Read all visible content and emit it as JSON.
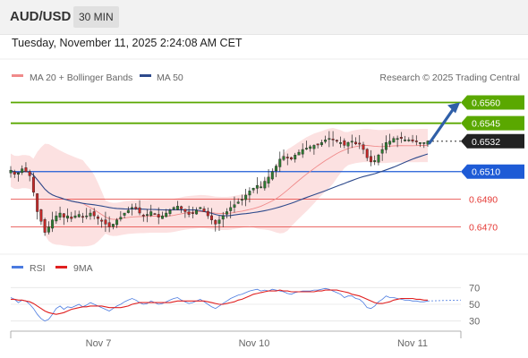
{
  "header": {
    "pair": "AUD/USD",
    "timeframe": "30 MIN"
  },
  "datetime": "Tuesday, November 11, 2025 2:24:08 AM CET",
  "legend": {
    "bollinger_label": "MA 20 + Bollinger Bands",
    "ma50_label": "MA 50",
    "credit": "Research © 2025 Trading Central"
  },
  "rsi_legend": {
    "rsi_label": "RSI",
    "ma9_label": "9MA"
  },
  "colors": {
    "up": "#2e7d32",
    "down": "#c62828",
    "resistance": "#5aa800",
    "support": "#1e5bd6",
    "pivot": "#e53935",
    "band": "#f9c9c9",
    "ma50": "#2e4a8c",
    "ma20": "#f08a8a",
    "arrow": "#2f5fa8",
    "rsi": "#4b7be0",
    "ma9": "#e02020"
  },
  "chart_data": [
    {
      "type": "candlestick",
      "x_ticks": [
        "Nov 7",
        "Nov 10",
        "Nov 11"
      ],
      "ylim": [
        0.6458,
        0.6572
      ],
      "levels": [
        {
          "label": "0.6560",
          "value": 0.656,
          "kind": "resistance"
        },
        {
          "label": "0.6545",
          "value": 0.6545,
          "kind": "resistance"
        },
        {
          "label": "0.6532",
          "value": 0.6532,
          "kind": "current"
        },
        {
          "label": "0.6510",
          "value": 0.651,
          "kind": "support"
        },
        {
          "label": "0.6490",
          "value": 0.649,
          "kind": "pivot"
        },
        {
          "label": "0.6470",
          "value": 0.647,
          "kind": "pivot"
        }
      ],
      "projection": {
        "from": 0.6532,
        "to": 0.656
      },
      "close": [
        0.6511,
        0.6508,
        0.6509,
        0.6512,
        0.651,
        0.6507,
        0.6495,
        0.6481,
        0.6474,
        0.6466,
        0.647,
        0.6475,
        0.6478,
        0.648,
        0.6477,
        0.6478,
        0.6476,
        0.6478,
        0.6479,
        0.6477,
        0.6478,
        0.648,
        0.6478,
        0.6476,
        0.6474,
        0.6472,
        0.647,
        0.6472,
        0.6475,
        0.6477,
        0.648,
        0.6482,
        0.6484,
        0.6483,
        0.648,
        0.6478,
        0.6479,
        0.6481,
        0.6479,
        0.6477,
        0.6478,
        0.648,
        0.6482,
        0.6484,
        0.6485,
        0.6483,
        0.6481,
        0.6479,
        0.648,
        0.6482,
        0.6484,
        0.6481,
        0.6478,
        0.6475,
        0.6472,
        0.6475,
        0.6478,
        0.6481,
        0.6484,
        0.6486,
        0.6488,
        0.649,
        0.6493,
        0.6496,
        0.6498,
        0.65,
        0.6499,
        0.6503,
        0.6506,
        0.651,
        0.6514,
        0.6519,
        0.6521,
        0.652,
        0.6519,
        0.6522,
        0.6524,
        0.6526,
        0.6527,
        0.6528,
        0.6529,
        0.653,
        0.6531,
        0.6533,
        0.6534,
        0.6533,
        0.6532,
        0.6531,
        0.6529,
        0.6531,
        0.6532,
        0.653,
        0.653,
        0.6526,
        0.652,
        0.6517,
        0.6518,
        0.6522,
        0.6526,
        0.6531,
        0.6532,
        0.6534,
        0.6534,
        0.6534,
        0.6533,
        0.6533,
        0.6532,
        0.6532,
        0.6531,
        0.6531,
        0.6532
      ]
    },
    {
      "type": "line",
      "name_rsi": "RSI",
      "name_ma": "9MA",
      "y_ticks": [
        70,
        50,
        30
      ],
      "ylim": [
        20,
        80
      ],
      "rsi": [
        58,
        56,
        52,
        55,
        54,
        50,
        45,
        38,
        33,
        30,
        32,
        38,
        45,
        48,
        44,
        47,
        46,
        48,
        50,
        47,
        49,
        52,
        50,
        48,
        46,
        44,
        42,
        45,
        48,
        50,
        53,
        55,
        57,
        55,
        52,
        50,
        51,
        54,
        52,
        50,
        51,
        53,
        55,
        57,
        58,
        55,
        53,
        51,
        52,
        54,
        56,
        53,
        50,
        47,
        45,
        48,
        51,
        54,
        57,
        59,
        61,
        62,
        64,
        66,
        67,
        68,
        66,
        67,
        66,
        68,
        67,
        66,
        65,
        63,
        62,
        64,
        65,
        66,
        66,
        66,
        67,
        67,
        68,
        69,
        68,
        66,
        64,
        62,
        58,
        60,
        60,
        57,
        56,
        52,
        46,
        45,
        48,
        53,
        56,
        60,
        58,
        58,
        57,
        56,
        55,
        55,
        54,
        54,
        53,
        53,
        54
      ],
      "ma9": [
        56,
        56,
        55,
        55,
        54,
        53,
        51,
        48,
        45,
        42,
        40,
        39,
        38,
        39,
        40,
        42,
        44,
        45,
        46,
        47,
        47,
        48,
        48,
        48,
        48,
        47,
        46,
        46,
        46,
        46,
        47,
        48,
        50,
        51,
        52,
        52,
        52,
        52,
        52,
        52,
        52,
        52,
        52,
        53,
        54,
        54,
        54,
        54,
        54,
        54,
        54,
        54,
        53,
        52,
        51,
        50,
        50,
        51,
        52,
        53,
        55,
        56,
        58,
        60,
        62,
        63,
        64,
        65,
        66,
        66,
        66,
        67,
        66,
        66,
        65,
        65,
        65,
        65,
        65,
        65,
        65,
        66,
        66,
        67,
        67,
        67,
        67,
        66,
        65,
        64,
        62,
        61,
        60,
        58,
        56,
        54,
        52,
        51,
        51,
        52,
        53,
        55,
        56,
        57,
        57,
        57,
        57,
        56,
        56,
        55,
        55
      ]
    }
  ]
}
